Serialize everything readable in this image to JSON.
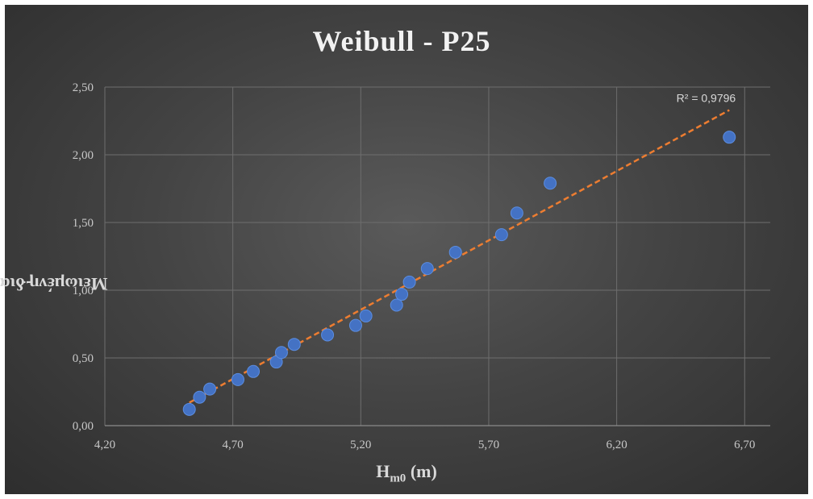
{
  "chart_data": {
    "type": "scatter",
    "title": "Weibull - P25",
    "xlabel_main": "H",
    "xlabel_sub": "m0",
    "xlabel_unit": "(m)",
    "ylabel_main": "Μειωμένη διακύμανση Y",
    "ylabel_sub": "i",
    "xlim": [
      4.2,
      6.8
    ],
    "ylim": [
      0.0,
      2.5
    ],
    "x_ticks": [
      4.2,
      4.7,
      5.2,
      5.7,
      6.2,
      6.7
    ],
    "x_tick_labels": [
      "4,20",
      "4,70",
      "5,20",
      "5,70",
      "6,20",
      "6,70"
    ],
    "y_ticks": [
      0.0,
      0.5,
      1.0,
      1.5,
      2.0,
      2.5
    ],
    "y_tick_labels": [
      "0,00",
      "0,50",
      "1,00",
      "1,50",
      "2,00",
      "2,50"
    ],
    "grid": true,
    "marker_color": "#4472c4",
    "trendline_color": "#ed7d31",
    "r2_label": "R² = 0,9796",
    "points": [
      {
        "x": 4.53,
        "y": 0.12
      },
      {
        "x": 4.57,
        "y": 0.21
      },
      {
        "x": 4.61,
        "y": 0.27
      },
      {
        "x": 4.72,
        "y": 0.34
      },
      {
        "x": 4.78,
        "y": 0.4
      },
      {
        "x": 4.87,
        "y": 0.47
      },
      {
        "x": 4.89,
        "y": 0.54
      },
      {
        "x": 4.94,
        "y": 0.6
      },
      {
        "x": 5.07,
        "y": 0.67
      },
      {
        "x": 5.18,
        "y": 0.74
      },
      {
        "x": 5.22,
        "y": 0.81
      },
      {
        "x": 5.34,
        "y": 0.89
      },
      {
        "x": 5.36,
        "y": 0.97
      },
      {
        "x": 5.39,
        "y": 1.06
      },
      {
        "x": 5.46,
        "y": 1.16
      },
      {
        "x": 5.57,
        "y": 1.28
      },
      {
        "x": 5.75,
        "y": 1.41
      },
      {
        "x": 5.81,
        "y": 1.57
      },
      {
        "x": 5.94,
        "y": 1.79
      },
      {
        "x": 6.64,
        "y": 2.13
      }
    ],
    "trendline": {
      "x": [
        4.53,
        6.64
      ],
      "y": [
        0.17,
        2.33
      ]
    }
  }
}
